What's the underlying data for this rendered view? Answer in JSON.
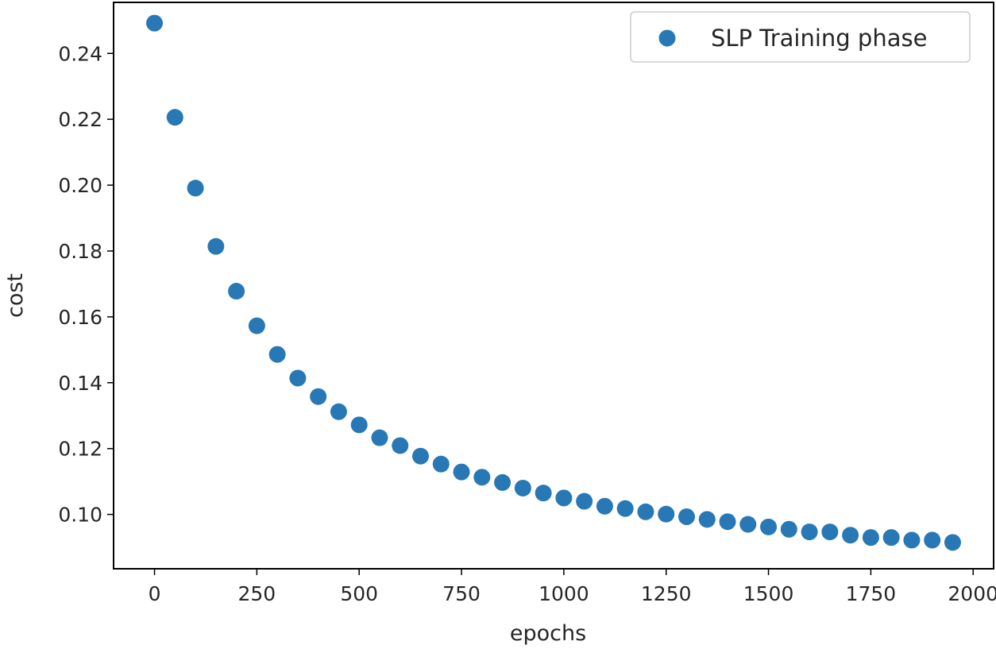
{
  "chart_data": {
    "type": "scatter",
    "title": "",
    "xlabel": "epochs",
    "ylabel": "cost",
    "xlim": [
      -100,
      2050
    ],
    "ylim": [
      0.0835,
      0.2555
    ],
    "xticks": [
      0,
      250,
      500,
      750,
      1000,
      1250,
      1500,
      1750,
      2000
    ],
    "xtick_labels": [
      "0",
      "250",
      "500",
      "750",
      "1000",
      "1250",
      "1500",
      "1750",
      "2000"
    ],
    "yticks": [
      0.1,
      0.12,
      0.14,
      0.16,
      0.18,
      0.2,
      0.22,
      0.24
    ],
    "ytick_labels": [
      "0.10",
      "0.12",
      "0.14",
      "0.16",
      "0.18",
      "0.20",
      "0.22",
      "0.24"
    ],
    "grid": false,
    "legend_position": "top-right",
    "series": [
      {
        "name": "SLP Training phase",
        "color": "#2878b5",
        "marker": "circle",
        "x": [
          0,
          50,
          100,
          150,
          200,
          250,
          300,
          350,
          400,
          450,
          500,
          550,
          600,
          650,
          700,
          750,
          800,
          850,
          900,
          950,
          1000,
          1050,
          1100,
          1150,
          1200,
          1250,
          1300,
          1350,
          1400,
          1450,
          1500,
          1550,
          1600,
          1650,
          1700,
          1750,
          1800,
          1850,
          1900,
          1950
        ],
        "y": [
          0.2492,
          0.2206,
          0.1991,
          0.1814,
          0.1678,
          0.1573,
          0.1486,
          0.1414,
          0.1358,
          0.1312,
          0.1272,
          0.1233,
          0.1209,
          0.1177,
          0.1153,
          0.1129,
          0.1113,
          0.1097,
          0.108,
          0.1065,
          0.105,
          0.104,
          0.1025,
          0.1018,
          0.1008,
          0.1001,
          0.0993,
          0.0985,
          0.0978,
          0.097,
          0.0962,
          0.0955,
          0.0947,
          0.0947,
          0.0937,
          0.093,
          0.093,
          0.0922,
          0.0922,
          0.0915
        ]
      }
    ]
  }
}
